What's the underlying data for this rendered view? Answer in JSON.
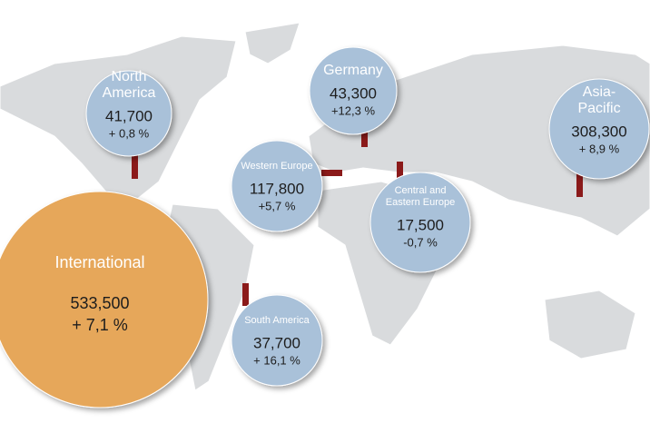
{
  "regions": [
    {
      "name": [
        "North",
        "America"
      ],
      "value": "41,700",
      "change": "+ 0,8 %"
    },
    {
      "name": [
        "Germany"
      ],
      "value": "43,300",
      "change": "+12,3 %"
    },
    {
      "name": [
        "Asia-",
        "Pacific"
      ],
      "value": "308,300",
      "change": "+ 8,9 %"
    },
    {
      "name": [
        "Western Europe"
      ],
      "value": "117,800",
      "change": "+5,7 %"
    },
    {
      "name": [
        "Central and",
        "Eastern Europe"
      ],
      "value": "17,500",
      "change": "-0,7 %"
    },
    {
      "name": [
        "International"
      ],
      "value": "533,500",
      "change": "+ 7,1 %"
    },
    {
      "name": [
        "South America"
      ],
      "value": "37,700",
      "change": "+ 16,1 %"
    }
  ]
}
